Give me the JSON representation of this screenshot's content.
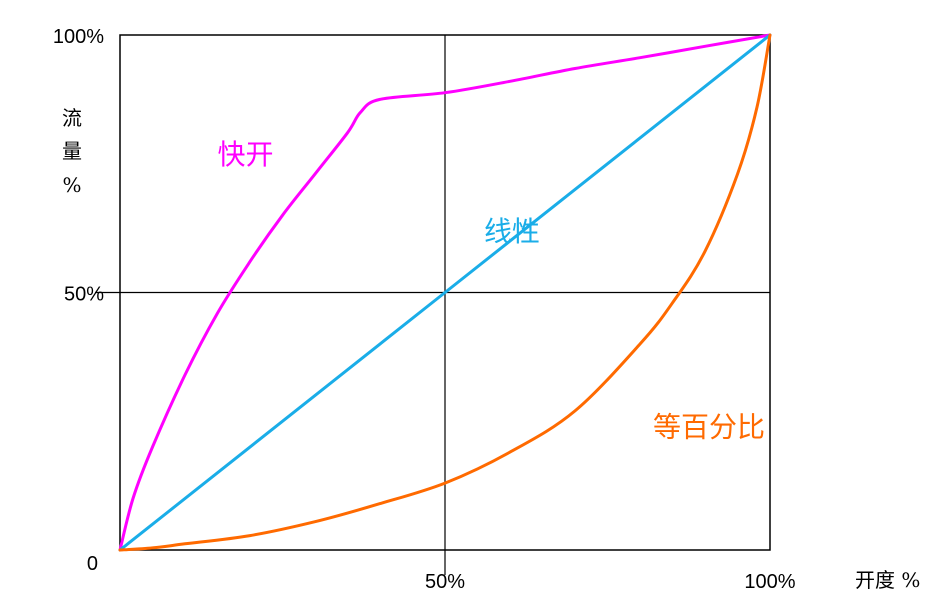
{
  "chart_data": {
    "type": "line",
    "title": "",
    "xlabel": "开度 %",
    "ylabel_chars": [
      "流",
      "量",
      "%"
    ],
    "xlim": [
      0,
      100
    ],
    "ylim": [
      0,
      100
    ],
    "x_ticks": [
      {
        "value": 50,
        "label": "50%"
      },
      {
        "value": 100,
        "label": "100%"
      }
    ],
    "y_ticks": [
      {
        "value": 0,
        "label": "0"
      },
      {
        "value": 50,
        "label": "50%"
      },
      {
        "value": 100,
        "label": "100%"
      }
    ],
    "gridlines": {
      "x": [
        50
      ],
      "y": [
        50
      ]
    },
    "series": [
      {
        "name": "快开",
        "color": "#ff00ff",
        "x": [
          0,
          2,
          5,
          10,
          15,
          20,
          25,
          30,
          35,
          37,
          40,
          50,
          60,
          70,
          80,
          90,
          100
        ],
        "y": [
          0,
          10,
          20,
          34,
          46,
          56,
          65,
          73,
          81,
          85,
          87.5,
          88.8,
          91,
          93.5,
          95.6,
          97.8,
          100
        ]
      },
      {
        "name": "线性",
        "color": "#1aade8",
        "x": [
          0,
          50,
          100
        ],
        "y": [
          0,
          50,
          100
        ]
      },
      {
        "name": "等百分比",
        "color": "#ff6a00",
        "x": [
          0,
          5,
          10,
          20,
          30,
          40,
          50,
          60,
          70,
          80,
          85,
          90,
          95,
          98,
          100
        ],
        "y": [
          0,
          0.4,
          1.2,
          2.8,
          5.5,
          9,
          13,
          19,
          27,
          40,
          48,
          58,
          73,
          86,
          100
        ]
      }
    ],
    "series_label_positions": [
      {
        "x": 15,
        "y": 75
      },
      {
        "x": 56,
        "y": 60
      },
      {
        "x": 82,
        "y": 22
      }
    ]
  }
}
